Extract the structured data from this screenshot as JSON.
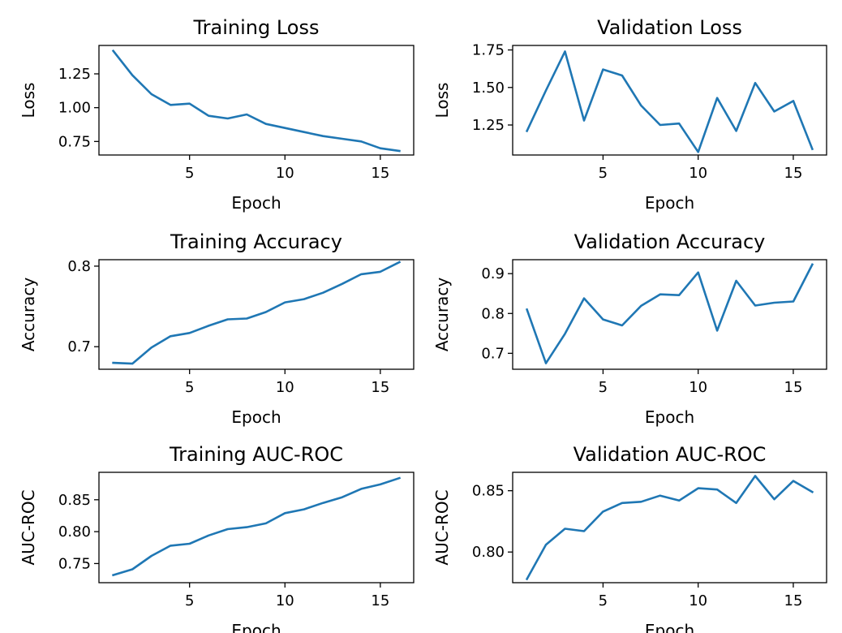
{
  "chart_data": [
    {
      "type": "line",
      "title": "Training Loss",
      "xlabel": "Epoch",
      "ylabel": "Loss",
      "xlim": [
        0.25,
        16.75
      ],
      "ylim": [
        0.65,
        1.46
      ],
      "xticks": [
        5,
        10,
        15
      ],
      "yticks": [
        0.75,
        1.0,
        1.25
      ],
      "ytick_labels": [
        "0.75",
        "1.00",
        "1.25"
      ],
      "grid": false,
      "x": [
        1,
        2,
        3,
        4,
        5,
        6,
        7,
        8,
        9,
        10,
        11,
        12,
        13,
        14,
        15,
        16
      ],
      "y": [
        1.42,
        1.24,
        1.1,
        1.02,
        1.03,
        0.94,
        0.92,
        0.95,
        0.88,
        0.85,
        0.82,
        0.79,
        0.77,
        0.75,
        0.7,
        0.68
      ]
    },
    {
      "type": "line",
      "title": "Validation Loss",
      "xlabel": "Epoch",
      "ylabel": "Loss",
      "xlim": [
        0.25,
        16.75
      ],
      "ylim": [
        1.05,
        1.78
      ],
      "xticks": [
        5,
        10,
        15
      ],
      "yticks": [
        1.25,
        1.5,
        1.75
      ],
      "ytick_labels": [
        "1.25",
        "1.50",
        "1.75"
      ],
      "grid": false,
      "x": [
        1,
        2,
        3,
        4,
        5,
        6,
        7,
        8,
        9,
        10,
        11,
        12,
        13,
        14,
        15,
        16
      ],
      "y": [
        1.21,
        1.48,
        1.74,
        1.28,
        1.62,
        1.58,
        1.38,
        1.25,
        1.26,
        1.07,
        1.43,
        1.21,
        1.53,
        1.34,
        1.41,
        1.09
      ]
    },
    {
      "type": "line",
      "title": "Training Accuracy",
      "xlabel": "Epoch",
      "ylabel": "Accuracy",
      "xlim": [
        0.25,
        16.75
      ],
      "ylim": [
        0.672,
        0.808
      ],
      "xticks": [
        5,
        10,
        15
      ],
      "yticks": [
        0.7,
        0.8
      ],
      "ytick_labels": [
        "0.7",
        "0.8"
      ],
      "grid": false,
      "x": [
        1,
        2,
        3,
        4,
        5,
        6,
        7,
        8,
        9,
        10,
        11,
        12,
        13,
        14,
        15,
        16
      ],
      "y": [
        0.68,
        0.679,
        0.699,
        0.713,
        0.717,
        0.726,
        0.734,
        0.735,
        0.743,
        0.755,
        0.759,
        0.767,
        0.778,
        0.79,
        0.793,
        0.805
      ]
    },
    {
      "type": "line",
      "title": "Validation Accuracy",
      "xlabel": "Epoch",
      "ylabel": "Accuracy",
      "xlim": [
        0.25,
        16.75
      ],
      "ylim": [
        0.66,
        0.935
      ],
      "xticks": [
        5,
        10,
        15
      ],
      "yticks": [
        0.7,
        0.8,
        0.9
      ],
      "ytick_labels": [
        "0.7",
        "0.8",
        "0.9"
      ],
      "grid": false,
      "x": [
        1,
        2,
        3,
        4,
        5,
        6,
        7,
        8,
        9,
        10,
        11,
        12,
        13,
        14,
        15,
        16
      ],
      "y": [
        0.81,
        0.675,
        0.749,
        0.838,
        0.785,
        0.77,
        0.819,
        0.848,
        0.846,
        0.903,
        0.757,
        0.882,
        0.82,
        0.827,
        0.83,
        0.923
      ]
    },
    {
      "type": "line",
      "title": "Training AUC-ROC",
      "xlabel": "Epoch",
      "ylabel": "AUC-ROC",
      "xlim": [
        0.25,
        16.75
      ],
      "ylim": [
        0.72,
        0.893
      ],
      "xticks": [
        5,
        10,
        15
      ],
      "yticks": [
        0.75,
        0.8,
        0.85
      ],
      "ytick_labels": [
        "0.75",
        "0.80",
        "0.85"
      ],
      "grid": false,
      "x": [
        1,
        2,
        3,
        4,
        5,
        6,
        7,
        8,
        9,
        10,
        11,
        12,
        13,
        14,
        15,
        16
      ],
      "y": [
        0.732,
        0.741,
        0.762,
        0.778,
        0.781,
        0.794,
        0.804,
        0.807,
        0.813,
        0.829,
        0.835,
        0.845,
        0.854,
        0.867,
        0.874,
        0.884
      ]
    },
    {
      "type": "line",
      "title": "Validation AUC-ROC",
      "xlabel": "Epoch",
      "ylabel": "AUC-ROC",
      "xlim": [
        0.25,
        16.75
      ],
      "ylim": [
        0.775,
        0.865
      ],
      "xticks": [
        5,
        10,
        15
      ],
      "yticks": [
        0.8,
        0.85
      ],
      "ytick_labels": [
        "0.80",
        "0.85"
      ],
      "grid": false,
      "x": [
        1,
        2,
        3,
        4,
        5,
        6,
        7,
        8,
        9,
        10,
        11,
        12,
        13,
        14,
        15,
        16
      ],
      "y": [
        0.778,
        0.806,
        0.819,
        0.817,
        0.833,
        0.84,
        0.841,
        0.846,
        0.842,
        0.852,
        0.851,
        0.84,
        0.862,
        0.843,
        0.858,
        0.849
      ]
    }
  ],
  "colors": {
    "line": "#1f77b4",
    "axes": "#000000",
    "background": "#ffffff"
  }
}
